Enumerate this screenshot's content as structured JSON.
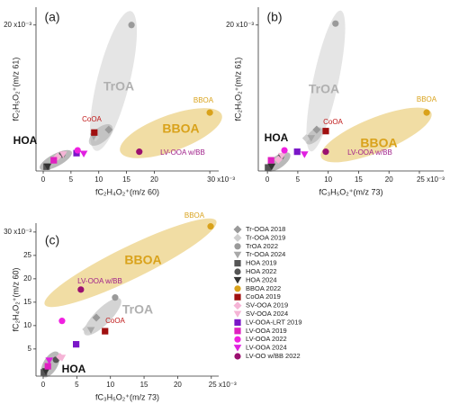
{
  "chart_data": [
    {
      "type": "scatter",
      "label": "(a)",
      "xlabel": "fC₂H₄O₂⁺(m/z 60)",
      "ylabel": "fC₂H₅O₂⁺(m/z 61)",
      "xlim": [
        -1.3,
        31.6
      ],
      "ylim": [
        -0.5,
        22.5
      ],
      "xticks": [
        0,
        5,
        10,
        15,
        20,
        {
          "value": 30,
          "label": "30 x10⁻³"
        }
      ],
      "yticks": [
        {
          "value": 20,
          "label": "20 x10⁻³"
        }
      ],
      "annotations": [
        {
          "text": "TrOA",
          "color": "#b0b0b0"
        },
        {
          "text": "BBOA",
          "color": "#d9a21b"
        },
        {
          "text": "BBOA",
          "color": "#d9a21b"
        },
        {
          "text": "CoOA",
          "color": "#c01818"
        },
        {
          "text": "HOA",
          "color": "#111111"
        },
        {
          "text": "LV-OOA w/BB",
          "color": "#a0208a"
        }
      ],
      "series": [
        {
          "marker": "diamond",
          "color": "#9a9a9a",
          "x": [
            11.8
          ],
          "y": [
            5.3
          ]
        },
        {
          "marker": "diamond",
          "color": "#cfcfcf",
          "x": [
            9.4
          ],
          "y": [
            4.2
          ]
        },
        {
          "marker": "circle",
          "color": "#9a9a9a",
          "x": [
            15.9
          ],
          "y": [
            20.0
          ]
        },
        {
          "marker": "triangle",
          "color": "#a8a8a8",
          "x": [
            9.1
          ],
          "y": [
            4.3
          ]
        },
        {
          "marker": "square",
          "color": "#555555",
          "x": [
            0.6
          ],
          "y": [
            0.1
          ]
        },
        {
          "marker": "circle",
          "color": "#555555",
          "x": [
            3.4
          ],
          "y": [
            1.8
          ]
        },
        {
          "marker": "triangle",
          "color": "#333333",
          "x": [
            0.8
          ],
          "y": [
            0.1
          ]
        },
        {
          "marker": "circle",
          "color": "#d9a21b",
          "x": [
            30.0
          ],
          "y": [
            7.7
          ]
        },
        {
          "marker": "square",
          "color": "#a01010",
          "x": [
            9.2
          ],
          "y": [
            4.9
          ]
        },
        {
          "marker": "diamond",
          "color": "#f5b4d6",
          "x": [
            2.6
          ],
          "y": [
            1.5
          ]
        },
        {
          "marker": "triangle",
          "color": "#f5b4d6",
          "x": [
            3.6
          ],
          "y": [
            1.8
          ]
        },
        {
          "marker": "square",
          "color": "#7a16c8",
          "x": [
            6.0
          ],
          "y": [
            2.0
          ]
        },
        {
          "marker": "square",
          "color": "#e020c0",
          "x": [
            1.9
          ],
          "y": [
            1.0
          ]
        },
        {
          "marker": "circle",
          "color": "#f020e0",
          "x": [
            6.2
          ],
          "y": [
            2.4
          ]
        },
        {
          "marker": "triangle",
          "color": "#e020e0",
          "x": [
            7.3
          ],
          "y": [
            1.9
          ]
        },
        {
          "marker": "circle",
          "color": "#9b1070",
          "x": [
            17.3
          ],
          "y": [
            2.2
          ]
        }
      ]
    },
    {
      "type": "scatter",
      "label": "(b)",
      "xlabel": "fC₃H₅O₂⁺(m/z 73)",
      "ylabel": "fC₂H₅O₂⁺(m/z 61)",
      "xlim": [
        -1.5,
        29.0
      ],
      "ylim": [
        -0.5,
        22.5
      ],
      "xticks": [
        0,
        5,
        10,
        15,
        20,
        {
          "value": 25,
          "label": "25 x10⁻³"
        }
      ],
      "yticks": [
        {
          "value": 20,
          "label": "20 x10⁻³"
        }
      ],
      "annotations": [
        {
          "text": "TrOA",
          "color": "#b0b0b0"
        },
        {
          "text": "BBOA",
          "color": "#d9a21b"
        },
        {
          "text": "BBOA",
          "color": "#d9a21b"
        },
        {
          "text": "CoOA",
          "color": "#c01818"
        },
        {
          "text": "HOA",
          "color": "#111111"
        },
        {
          "text": "LV-OOA w/BB",
          "color": "#a0208a"
        }
      ],
      "series": [
        {
          "marker": "diamond",
          "color": "#9a9a9a",
          "x": [
            8.1
          ],
          "y": [
            5.3
          ]
        },
        {
          "marker": "diamond",
          "color": "#cfcfcf",
          "x": [
            6.4
          ],
          "y": [
            4.1
          ]
        },
        {
          "marker": "circle",
          "color": "#9a9a9a",
          "x": [
            11.2
          ],
          "y": [
            20.2
          ]
        },
        {
          "marker": "triangle",
          "color": "#a8a8a8",
          "x": [
            7.2
          ],
          "y": [
            4.1
          ]
        },
        {
          "marker": "square",
          "color": "#555555",
          "x": [
            0.1
          ],
          "y": [
            0.0
          ]
        },
        {
          "marker": "circle",
          "color": "#555555",
          "x": [
            2.2
          ],
          "y": [
            1.5
          ]
        },
        {
          "marker": "triangle",
          "color": "#333333",
          "x": [
            0.7
          ],
          "y": [
            0.1
          ]
        },
        {
          "marker": "circle",
          "color": "#d9a21b",
          "x": [
            26.2
          ],
          "y": [
            7.7
          ]
        },
        {
          "marker": "square",
          "color": "#a01010",
          "x": [
            9.6
          ],
          "y": [
            5.1
          ]
        },
        {
          "marker": "diamond",
          "color": "#f5b4d6",
          "x": [
            1.8
          ],
          "y": [
            1.1
          ]
        },
        {
          "marker": "triangle",
          "color": "#f5b4d6",
          "x": [
            2.4
          ],
          "y": [
            1.6
          ]
        },
        {
          "marker": "square",
          "color": "#7a16c8",
          "x": [
            4.9
          ],
          "y": [
            2.2
          ]
        },
        {
          "marker": "square",
          "color": "#e020c0",
          "x": [
            0.6
          ],
          "y": [
            1.0
          ]
        },
        {
          "marker": "circle",
          "color": "#f020e0",
          "x": [
            2.8
          ],
          "y": [
            2.4
          ]
        },
        {
          "marker": "triangle",
          "color": "#e020e0",
          "x": [
            6.1
          ],
          "y": [
            1.8
          ]
        },
        {
          "marker": "circle",
          "color": "#9b1070",
          "x": [
            9.6
          ],
          "y": [
            2.2
          ]
        }
      ]
    },
    {
      "type": "scatter",
      "label": "(c)",
      "xlabel": "fC₃H₅O₂⁺(m/z 73)",
      "ylabel": "fC₂H₄O₂⁺(m/z 60)",
      "xlim": [
        -1.07,
        26.1
      ],
      "ylim": [
        -0.8,
        31.9
      ],
      "xticks": [
        0,
        5,
        10,
        15,
        20,
        {
          "value": 25,
          "label": "25 x10⁻³"
        }
      ],
      "yticks": [
        5,
        10,
        15,
        20,
        25,
        {
          "value": 30,
          "label": "30 x10⁻³"
        }
      ],
      "annotations": [
        {
          "text": "BBOA",
          "color": "#d9a21b"
        },
        {
          "text": "BBOA",
          "color": "#d9a21b"
        },
        {
          "text": "LV-OOA w/BB",
          "color": "#a0208a"
        },
        {
          "text": "TrOA",
          "color": "#b0b0b0"
        },
        {
          "text": "CoOA",
          "color": "#c01818"
        },
        {
          "text": "HOA",
          "color": "#111111"
        }
      ],
      "series": [
        {
          "name": "Tr-OOA 2018",
          "marker": "diamond",
          "color": "#9a9a9a",
          "x": [
            7.9
          ],
          "y": [
            11.7
          ]
        },
        {
          "name": "Tr-OOA 2019",
          "marker": "diamond",
          "color": "#cfcfcf",
          "x": [
            6.4
          ],
          "y": [
            9.2
          ]
        },
        {
          "name": "TrOA 2022",
          "marker": "circle",
          "color": "#9a9a9a",
          "x": [
            10.7
          ],
          "y": [
            16.0
          ]
        },
        {
          "name": "Tr-OOA 2024",
          "marker": "triangle",
          "color": "#a8a8a8",
          "x": [
            7.1
          ],
          "y": [
            9.0
          ]
        },
        {
          "name": "HOA 2019",
          "marker": "square",
          "color": "#555555",
          "x": [
            0.1
          ],
          "y": [
            0.0
          ]
        },
        {
          "name": "HOA 2022",
          "marker": "circle",
          "color": "#555555",
          "x": [
            1.9
          ],
          "y": [
            2.7
          ]
        },
        {
          "name": "HOA 2024",
          "marker": "triangle",
          "color": "#333333",
          "x": [
            0.4
          ],
          "y": [
            0.2
          ]
        },
        {
          "name": "BBOA 2022",
          "marker": "circle",
          "color": "#d9a21b",
          "x": [
            24.9
          ],
          "y": [
            31.2
          ]
        },
        {
          "name": "CoOA 2019",
          "marker": "square",
          "color": "#a01010",
          "x": [
            9.2
          ],
          "y": [
            8.8
          ]
        },
        {
          "name": "SV-OOA 2019",
          "marker": "diamond",
          "color": "#f5b4d6",
          "x": [
            2.5
          ],
          "y": [
            3.3
          ]
        },
        {
          "name": "SV-OOA 2024",
          "marker": "triangle",
          "color": "#f5b4d6",
          "x": [
            2.8
          ],
          "y": [
            3.1
          ]
        },
        {
          "name": "LV-OOA-LRT 2019",
          "marker": "square",
          "color": "#7a16c8",
          "x": [
            4.9
          ],
          "y": [
            6.0
          ]
        },
        {
          "name": "LV-OOA 2019",
          "marker": "square",
          "color": "#e020c0",
          "x": [
            0.7
          ],
          "y": [
            1.3
          ]
        },
        {
          "name": "LV-OOA 2022",
          "marker": "circle",
          "color": "#f020e0",
          "x": [
            2.8
          ],
          "y": [
            11.0
          ]
        },
        {
          "name": "LV-OOA 2024",
          "marker": "triangle",
          "color": "#e020e0",
          "x": [
            0.9
          ],
          "y": [
            2.5
          ]
        },
        {
          "name": "LV-OO w/BB 2022",
          "marker": "circle",
          "color": "#9b1070",
          "x": [
            5.6
          ],
          "y": [
            17.7
          ]
        }
      ]
    }
  ]
}
